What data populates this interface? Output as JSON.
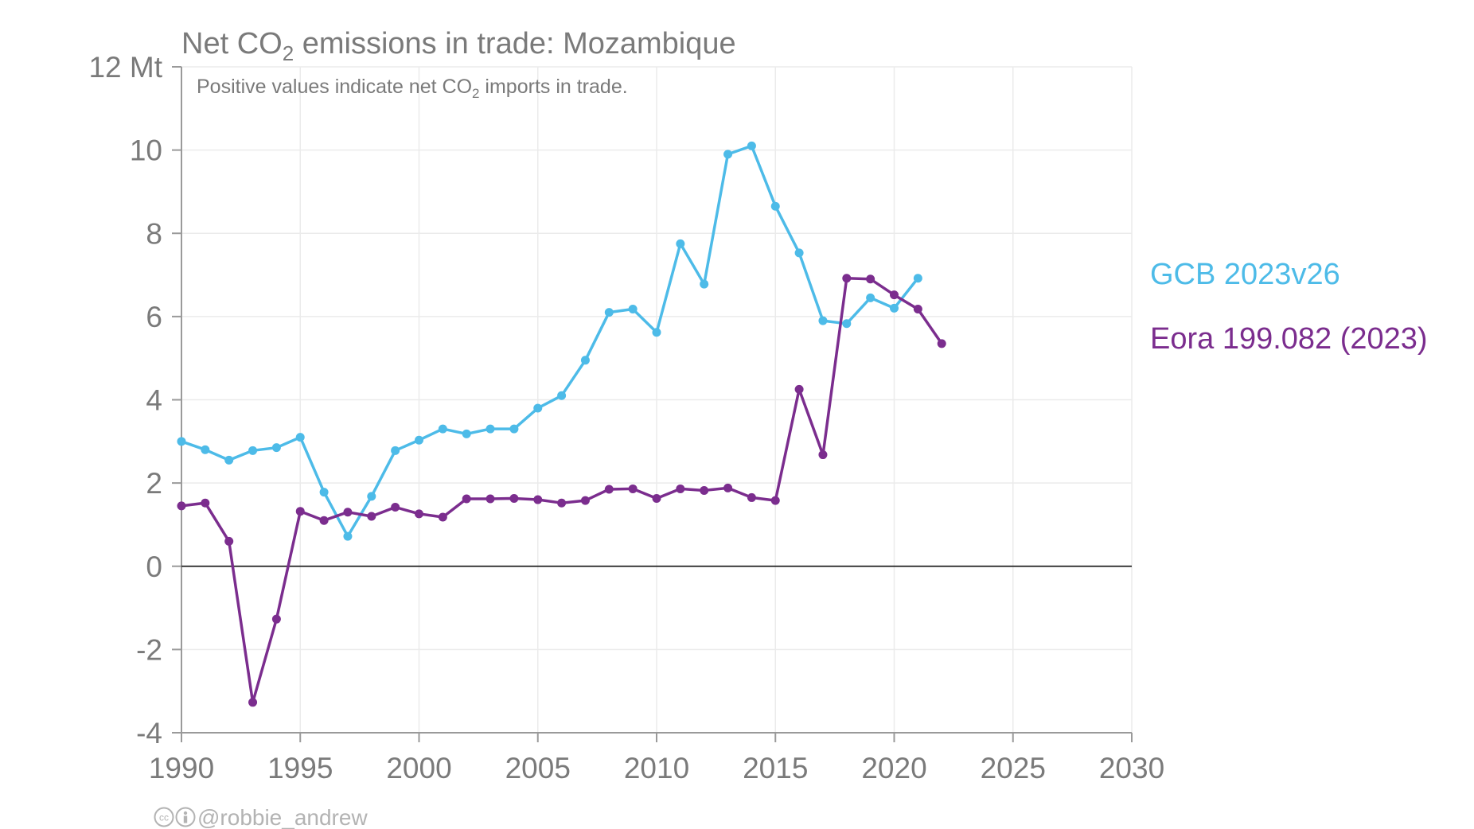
{
  "chart_data": {
    "type": "line",
    "title_main": "Net CO",
    "title_sub": "2",
    "title_rest": " emissions in trade: Mozambique",
    "subtitle_main": "Positive values indicate net CO",
    "subtitle_sub": "2",
    "subtitle_rest": " imports in trade.",
    "y_unit_label": "12 Mt",
    "ylim": [
      -4,
      12
    ],
    "y_ticks": [
      -4,
      -2,
      0,
      2,
      4,
      6,
      8,
      10,
      12
    ],
    "y_tick_labels": [
      "-4",
      "-2",
      "0",
      "2",
      "4",
      "6",
      "8",
      "10",
      "12 Mt"
    ],
    "xlim": [
      1990,
      2030
    ],
    "x_ticks": [
      1990,
      1995,
      2000,
      2005,
      2010,
      2015,
      2020,
      2025,
      2030
    ],
    "x_tick_labels": [
      "1990",
      "1995",
      "2000",
      "2005",
      "2010",
      "2015",
      "2020",
      "2025",
      "2030"
    ],
    "grid": true,
    "legend_placement": "right",
    "series": [
      {
        "name": "GCB 2023v26",
        "color": "#4dbbe8",
        "x": [
          1990,
          1991,
          1992,
          1993,
          1994,
          1995,
          1996,
          1997,
          1998,
          1999,
          2000,
          2001,
          2002,
          2003,
          2004,
          2005,
          2006,
          2007,
          2008,
          2009,
          2010,
          2011,
          2012,
          2013,
          2014,
          2015,
          2016,
          2017,
          2018,
          2019,
          2020,
          2021
        ],
        "y": [
          3.0,
          2.8,
          2.55,
          2.78,
          2.85,
          3.1,
          1.78,
          0.72,
          1.68,
          2.78,
          3.03,
          3.3,
          3.18,
          3.3,
          3.3,
          3.8,
          4.1,
          4.95,
          6.1,
          6.18,
          5.62,
          7.75,
          6.78,
          9.9,
          10.1,
          8.65,
          7.53,
          5.9,
          5.83,
          6.45,
          6.2,
          6.92
        ]
      },
      {
        "name": "Eora 199.082 (2023)",
        "color": "#7b2d8e",
        "x": [
          1990,
          1991,
          1992,
          1993,
          1994,
          1995,
          1996,
          1997,
          1998,
          1999,
          2000,
          2001,
          2002,
          2003,
          2004,
          2005,
          2006,
          2007,
          2008,
          2009,
          2010,
          2011,
          2012,
          2013,
          2014,
          2015,
          2016,
          2017,
          2018,
          2019,
          2020,
          2021,
          2022
        ],
        "y": [
          1.45,
          1.52,
          0.6,
          -3.27,
          -1.27,
          1.32,
          1.1,
          1.3,
          1.2,
          1.42,
          1.26,
          1.18,
          1.62,
          1.62,
          1.63,
          1.6,
          1.52,
          1.58,
          1.85,
          1.86,
          1.63,
          1.86,
          1.82,
          1.88,
          1.65,
          1.58,
          4.25,
          2.68,
          6.92,
          6.9,
          6.52,
          6.18,
          5.35
        ]
      }
    ],
    "credit": "@robbie_andrew",
    "credit_icons": [
      "creative-commons-icon",
      "attribution-icon"
    ]
  }
}
